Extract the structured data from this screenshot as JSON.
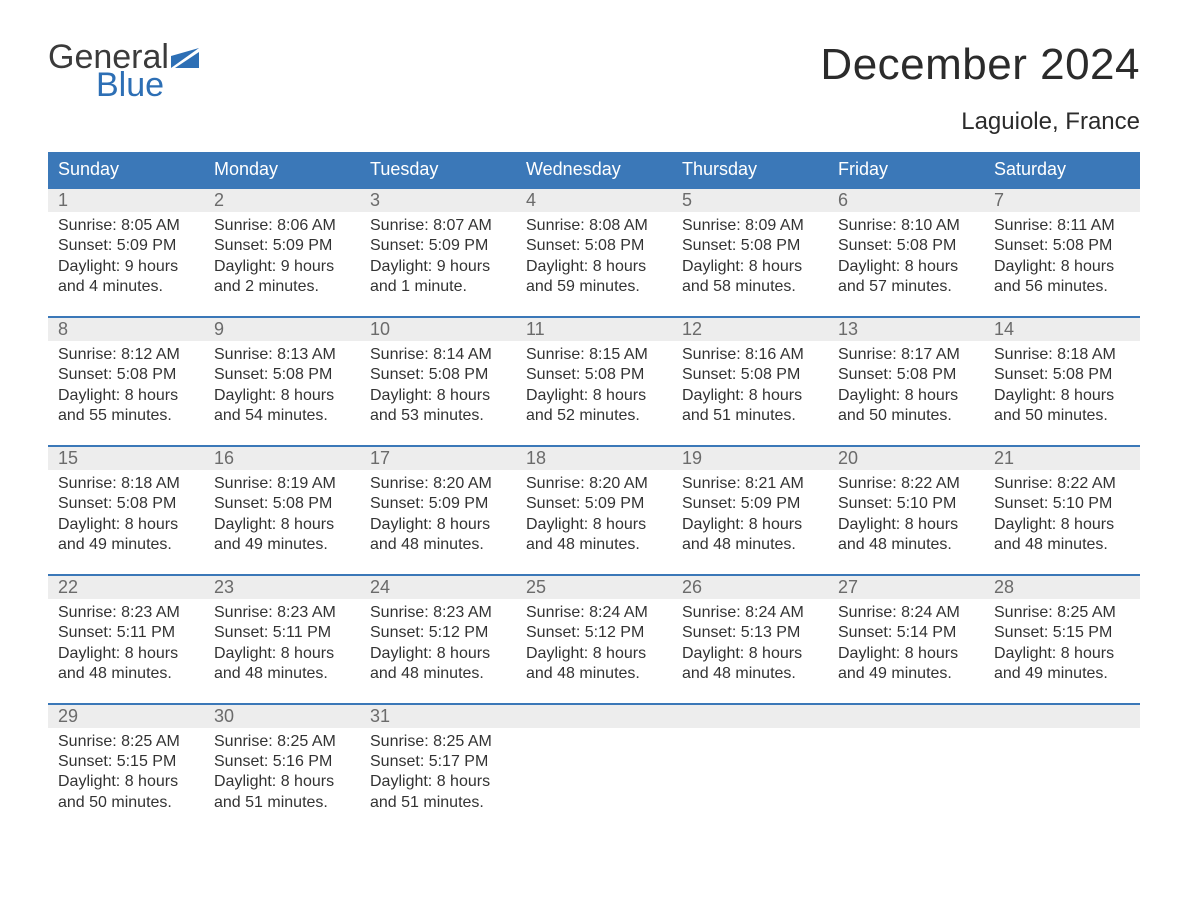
{
  "brand": {
    "word1": "General",
    "word2": "Blue",
    "text_color": "#3b3b3b",
    "accent_color": "#2d6fb5",
    "flag_color": "#2d6fb5"
  },
  "header": {
    "month_title": "December 2024",
    "location": "Laguiole, France"
  },
  "colors": {
    "header_bg": "#3b78b8",
    "header_text": "#ffffff",
    "daynum_bg": "#ededed",
    "daynum_text": "#6b6b6b",
    "body_text": "#333333",
    "rule": "#3b78b8",
    "page_bg": "#ffffff"
  },
  "typography": {
    "title_fontsize": 44,
    "location_fontsize": 24,
    "dow_fontsize": 18,
    "daynum_fontsize": 18,
    "cell_fontsize": 16
  },
  "days_of_week": [
    "Sunday",
    "Monday",
    "Tuesday",
    "Wednesday",
    "Thursday",
    "Friday",
    "Saturday"
  ],
  "weeks": [
    [
      {
        "n": "1",
        "sunrise": "Sunrise: 8:05 AM",
        "sunset": "Sunset: 5:09 PM",
        "d1": "Daylight: 9 hours",
        "d2": "and 4 minutes."
      },
      {
        "n": "2",
        "sunrise": "Sunrise: 8:06 AM",
        "sunset": "Sunset: 5:09 PM",
        "d1": "Daylight: 9 hours",
        "d2": "and 2 minutes."
      },
      {
        "n": "3",
        "sunrise": "Sunrise: 8:07 AM",
        "sunset": "Sunset: 5:09 PM",
        "d1": "Daylight: 9 hours",
        "d2": "and 1 minute."
      },
      {
        "n": "4",
        "sunrise": "Sunrise: 8:08 AM",
        "sunset": "Sunset: 5:08 PM",
        "d1": "Daylight: 8 hours",
        "d2": "and 59 minutes."
      },
      {
        "n": "5",
        "sunrise": "Sunrise: 8:09 AM",
        "sunset": "Sunset: 5:08 PM",
        "d1": "Daylight: 8 hours",
        "d2": "and 58 minutes."
      },
      {
        "n": "6",
        "sunrise": "Sunrise: 8:10 AM",
        "sunset": "Sunset: 5:08 PM",
        "d1": "Daylight: 8 hours",
        "d2": "and 57 minutes."
      },
      {
        "n": "7",
        "sunrise": "Sunrise: 8:11 AM",
        "sunset": "Sunset: 5:08 PM",
        "d1": "Daylight: 8 hours",
        "d2": "and 56 minutes."
      }
    ],
    [
      {
        "n": "8",
        "sunrise": "Sunrise: 8:12 AM",
        "sunset": "Sunset: 5:08 PM",
        "d1": "Daylight: 8 hours",
        "d2": "and 55 minutes."
      },
      {
        "n": "9",
        "sunrise": "Sunrise: 8:13 AM",
        "sunset": "Sunset: 5:08 PM",
        "d1": "Daylight: 8 hours",
        "d2": "and 54 minutes."
      },
      {
        "n": "10",
        "sunrise": "Sunrise: 8:14 AM",
        "sunset": "Sunset: 5:08 PM",
        "d1": "Daylight: 8 hours",
        "d2": "and 53 minutes."
      },
      {
        "n": "11",
        "sunrise": "Sunrise: 8:15 AM",
        "sunset": "Sunset: 5:08 PM",
        "d1": "Daylight: 8 hours",
        "d2": "and 52 minutes."
      },
      {
        "n": "12",
        "sunrise": "Sunrise: 8:16 AM",
        "sunset": "Sunset: 5:08 PM",
        "d1": "Daylight: 8 hours",
        "d2": "and 51 minutes."
      },
      {
        "n": "13",
        "sunrise": "Sunrise: 8:17 AM",
        "sunset": "Sunset: 5:08 PM",
        "d1": "Daylight: 8 hours",
        "d2": "and 50 minutes."
      },
      {
        "n": "14",
        "sunrise": "Sunrise: 8:18 AM",
        "sunset": "Sunset: 5:08 PM",
        "d1": "Daylight: 8 hours",
        "d2": "and 50 minutes."
      }
    ],
    [
      {
        "n": "15",
        "sunrise": "Sunrise: 8:18 AM",
        "sunset": "Sunset: 5:08 PM",
        "d1": "Daylight: 8 hours",
        "d2": "and 49 minutes."
      },
      {
        "n": "16",
        "sunrise": "Sunrise: 8:19 AM",
        "sunset": "Sunset: 5:08 PM",
        "d1": "Daylight: 8 hours",
        "d2": "and 49 minutes."
      },
      {
        "n": "17",
        "sunrise": "Sunrise: 8:20 AM",
        "sunset": "Sunset: 5:09 PM",
        "d1": "Daylight: 8 hours",
        "d2": "and 48 minutes."
      },
      {
        "n": "18",
        "sunrise": "Sunrise: 8:20 AM",
        "sunset": "Sunset: 5:09 PM",
        "d1": "Daylight: 8 hours",
        "d2": "and 48 minutes."
      },
      {
        "n": "19",
        "sunrise": "Sunrise: 8:21 AM",
        "sunset": "Sunset: 5:09 PM",
        "d1": "Daylight: 8 hours",
        "d2": "and 48 minutes."
      },
      {
        "n": "20",
        "sunrise": "Sunrise: 8:22 AM",
        "sunset": "Sunset: 5:10 PM",
        "d1": "Daylight: 8 hours",
        "d2": "and 48 minutes."
      },
      {
        "n": "21",
        "sunrise": "Sunrise: 8:22 AM",
        "sunset": "Sunset: 5:10 PM",
        "d1": "Daylight: 8 hours",
        "d2": "and 48 minutes."
      }
    ],
    [
      {
        "n": "22",
        "sunrise": "Sunrise: 8:23 AM",
        "sunset": "Sunset: 5:11 PM",
        "d1": "Daylight: 8 hours",
        "d2": "and 48 minutes."
      },
      {
        "n": "23",
        "sunrise": "Sunrise: 8:23 AM",
        "sunset": "Sunset: 5:11 PM",
        "d1": "Daylight: 8 hours",
        "d2": "and 48 minutes."
      },
      {
        "n": "24",
        "sunrise": "Sunrise: 8:23 AM",
        "sunset": "Sunset: 5:12 PM",
        "d1": "Daylight: 8 hours",
        "d2": "and 48 minutes."
      },
      {
        "n": "25",
        "sunrise": "Sunrise: 8:24 AM",
        "sunset": "Sunset: 5:12 PM",
        "d1": "Daylight: 8 hours",
        "d2": "and 48 minutes."
      },
      {
        "n": "26",
        "sunrise": "Sunrise: 8:24 AM",
        "sunset": "Sunset: 5:13 PM",
        "d1": "Daylight: 8 hours",
        "d2": "and 48 minutes."
      },
      {
        "n": "27",
        "sunrise": "Sunrise: 8:24 AM",
        "sunset": "Sunset: 5:14 PM",
        "d1": "Daylight: 8 hours",
        "d2": "and 49 minutes."
      },
      {
        "n": "28",
        "sunrise": "Sunrise: 8:25 AM",
        "sunset": "Sunset: 5:15 PM",
        "d1": "Daylight: 8 hours",
        "d2": "and 49 minutes."
      }
    ],
    [
      {
        "n": "29",
        "sunrise": "Sunrise: 8:25 AM",
        "sunset": "Sunset: 5:15 PM",
        "d1": "Daylight: 8 hours",
        "d2": "and 50 minutes."
      },
      {
        "n": "30",
        "sunrise": "Sunrise: 8:25 AM",
        "sunset": "Sunset: 5:16 PM",
        "d1": "Daylight: 8 hours",
        "d2": "and 51 minutes."
      },
      {
        "n": "31",
        "sunrise": "Sunrise: 8:25 AM",
        "sunset": "Sunset: 5:17 PM",
        "d1": "Daylight: 8 hours",
        "d2": "and 51 minutes."
      },
      null,
      null,
      null,
      null
    ]
  ]
}
